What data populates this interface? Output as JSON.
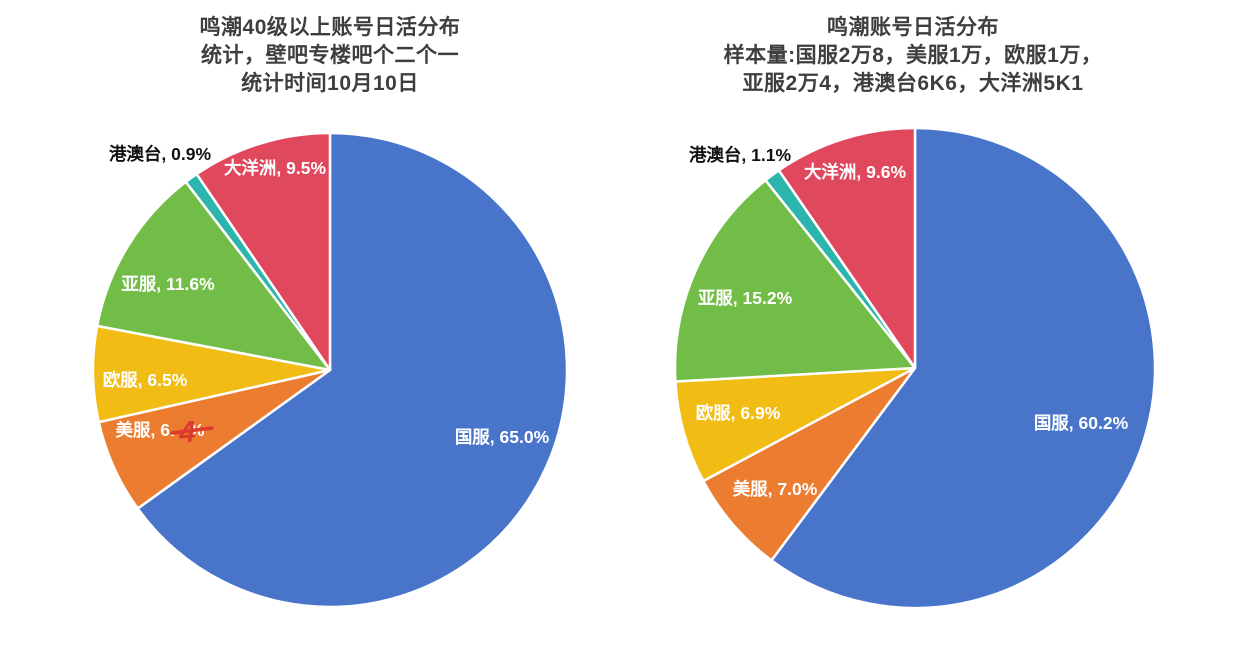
{
  "page": {
    "background": "#ffffff"
  },
  "chart_data": [
    {
      "type": "pie",
      "title_lines": [
        "鸣潮40级以上账号日活分布",
        "统计，壁吧专楼吧个二个一",
        "统计时间10月10日"
      ],
      "categories": [
        "国服",
        "美服",
        "欧服",
        "亚服",
        "港澳台",
        "大洋洲"
      ],
      "values": [
        65.0,
        6.4,
        6.5,
        11.6,
        0.9,
        9.5
      ],
      "slice_labels": [
        "国服, 65.0%",
        "美服, 6.4%",
        "欧服, 6.5%",
        "亚服, 11.6%",
        "港澳台, 0.9%",
        "大洋洲, 9.5%"
      ],
      "colors": [
        "#4874ca",
        "#ec7c30",
        "#f1bc13",
        "#72bd47",
        "#2cb5ad",
        "#e0485e"
      ],
      "label_placement": [
        "inside",
        "inside",
        "inside",
        "inside",
        "outside",
        "inside"
      ],
      "label_colors": [
        "#ffffff",
        "#ffffff",
        "#ffffff",
        "#ffffff",
        "#111111",
        "#ffffff"
      ],
      "start_angle_deg": 0,
      "direction": "clockwise",
      "legend": "none",
      "annotation": {
        "target_slice": "美服",
        "kind": "handwritten-overlay",
        "glyph": "4",
        "label_prefix": "美服, 6.",
        "label_suffix": "%",
        "color": "#dc3a2c",
        "note": "red hand-drawn 4 over the 美服 percentage digit, crossbar striking through the % sign"
      }
    },
    {
      "type": "pie",
      "title_lines": [
        "鸣潮账号日活分布",
        "样本量:国服2万8，美服1万，欧服1万，",
        "亚服2万4，港澳台6K6，大洋洲5K1"
      ],
      "categories": [
        "国服",
        "美服",
        "欧服",
        "亚服",
        "港澳台",
        "大洋洲"
      ],
      "values": [
        60.2,
        7.0,
        6.9,
        15.2,
        1.1,
        9.6
      ],
      "slice_labels": [
        "国服, 60.2%",
        "美服, 7.0%",
        "欧服, 6.9%",
        "亚服, 15.2%",
        "港澳台, 1.1%",
        "大洋洲, 9.6%"
      ],
      "colors": [
        "#4874ca",
        "#ec7c30",
        "#f1bc13",
        "#72bd47",
        "#2cb5ad",
        "#e0485e"
      ],
      "label_placement": [
        "inside",
        "inside",
        "inside",
        "inside",
        "outside",
        "inside"
      ],
      "label_colors": [
        "#ffffff",
        "#ffffff",
        "#ffffff",
        "#ffffff",
        "#111111",
        "#ffffff"
      ],
      "start_angle_deg": 0,
      "direction": "clockwise",
      "legend": "none"
    }
  ]
}
